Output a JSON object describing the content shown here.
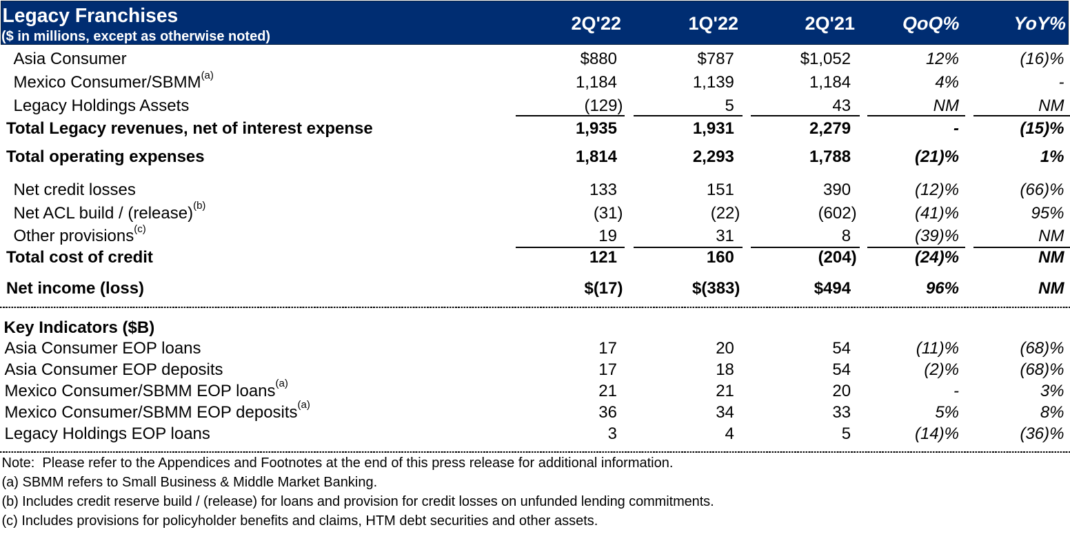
{
  "colors": {
    "header_background": "#002D72",
    "header_border": "#0A2240",
    "header_text": "#FFFFFF",
    "body_text": "#000000"
  },
  "header": {
    "title": "Legacy Franchises",
    "subtitle": "($ in millions, except as otherwise noted)",
    "columns": [
      "2Q'22",
      "1Q'22",
      "2Q'21",
      "QoQ%",
      "YoY%"
    ]
  },
  "table": {
    "rows": [
      {
        "label": "Asia Consumer",
        "values": [
          "$880",
          "$787",
          "$1,052",
          "12%",
          "(16)%"
        ]
      },
      {
        "label": "Mexico Consumer/SBMM",
        "sup": "(a)",
        "values": [
          "1,184",
          "1,139",
          "1,184",
          "4%",
          "-"
        ]
      },
      {
        "label": "Legacy Holdings Assets",
        "values": [
          "(129)",
          "5",
          "43",
          "NM",
          "NM"
        ]
      },
      {
        "label": "Total Legacy revenues, net of interest expense",
        "values": [
          "1,935",
          "1,931",
          "2,279",
          "-",
          "(15)%"
        ]
      },
      {
        "label": "Total operating expenses",
        "values": [
          "1,814",
          "2,293",
          "1,788",
          "(21)%",
          "1%"
        ]
      },
      {
        "label": "Net credit losses",
        "values": [
          "133",
          "151",
          "390",
          "(12)%",
          "(66)%"
        ]
      },
      {
        "label": "Net ACL build / (release)",
        "sup": "(b)",
        "values": [
          "(31)",
          "(22)",
          "(602)",
          "(41)%",
          "95%"
        ]
      },
      {
        "label": "Other provisions",
        "sup": "(c)",
        "values": [
          "19",
          "31",
          "8",
          "(39)%",
          "NM"
        ]
      },
      {
        "label": "Total cost of credit",
        "values": [
          "121",
          "160",
          "(204)",
          "(24)%",
          "NM"
        ]
      },
      {
        "label": "Net income (loss)",
        "values": [
          "$(17)",
          "$(383)",
          "$494",
          "96%",
          "NM"
        ]
      },
      {
        "label": "Key Indicators ($B)"
      },
      {
        "label": "Asia Consumer EOP loans",
        "values": [
          "17",
          "20",
          "54",
          "(11)%",
          "(68)%"
        ]
      },
      {
        "label": "Asia Consumer EOP deposits",
        "values": [
          "17",
          "18",
          "54",
          "(2)%",
          "(68)%"
        ]
      },
      {
        "label": "Mexico Consumer/SBMM EOP loans",
        "sup": "(a)",
        "values": [
          "21",
          "21",
          "20",
          "-",
          "3%"
        ]
      },
      {
        "label": "Mexico Consumer/SBMM EOP deposits",
        "sup": "(a)",
        "values": [
          "36",
          "34",
          "33",
          "5%",
          "8%"
        ]
      },
      {
        "label": "Legacy Holdings EOP loans",
        "values": [
          "3",
          "4",
          "5",
          "(14)%",
          "(36)%"
        ]
      }
    ]
  },
  "footnotes": [
    "Note:  Please refer to the Appendices and Footnotes at the end of this press release for additional information.",
    "(a) SBMM refers to Small Business & Middle Market Banking.",
    "(b) Includes credit reserve build / (release) for loans and provision for credit losses on unfunded lending commitments.",
    "(c) Includes provisions for policyholder benefits and claims, HTM debt securities and other assets."
  ]
}
